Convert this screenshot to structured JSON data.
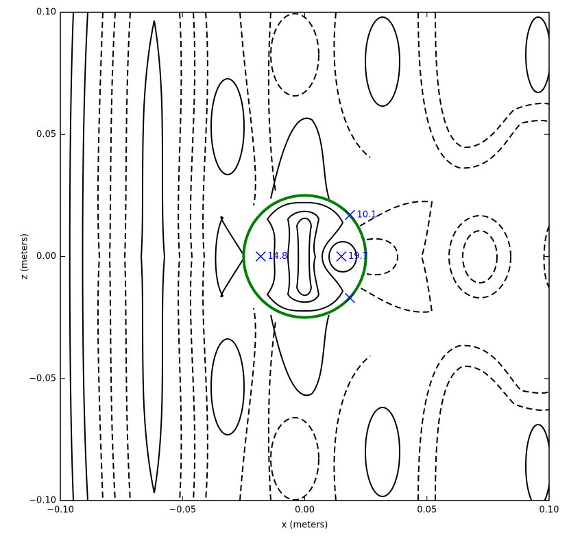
{
  "chart_data": {
    "type": "contour",
    "xlabel": "x (meters)",
    "ylabel": "z (meters)",
    "xlim": [
      -0.1,
      0.1
    ],
    "ylim": [
      -0.1,
      0.1
    ],
    "xticks": [
      {
        "value": -0.1,
        "label": "−0.10"
      },
      {
        "value": -0.05,
        "label": "−0.05"
      },
      {
        "value": 0,
        "label": "0.00"
      },
      {
        "value": 0.05,
        "label": "0.05"
      },
      {
        "value": 0.1,
        "label": "0.10"
      }
    ],
    "yticks": [
      {
        "value": -0.1,
        "label": "−0.10"
      },
      {
        "value": -0.05,
        "label": "−0.05"
      },
      {
        "value": 0,
        "label": "0.00"
      },
      {
        "value": 0.05,
        "label": "0.05"
      },
      {
        "value": 0.1,
        "label": "0.10"
      }
    ],
    "circle": {
      "center_x": 0,
      "center_y": 0,
      "radius": 0.025,
      "color": "#008000"
    },
    "markers": {
      "color": "#0000ff",
      "x": [
        -0.018,
        0.015,
        0.0185,
        0.0185
      ],
      "y": [
        0,
        0,
        0.017,
        -0.017
      ],
      "labels": [
        "14.8",
        "19.7",
        "10.1",
        null
      ]
    }
  }
}
